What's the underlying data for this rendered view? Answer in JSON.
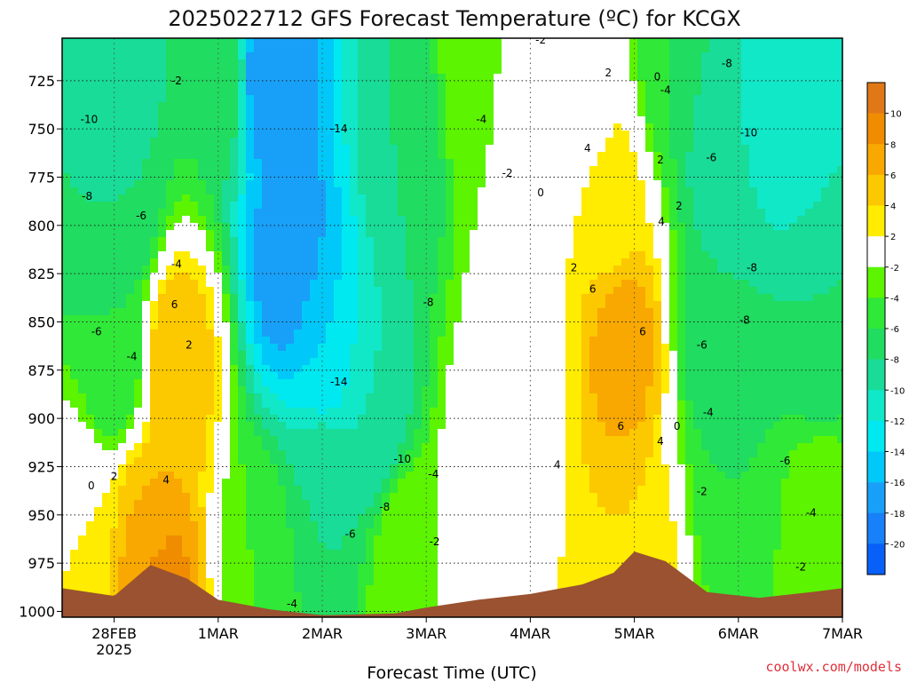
{
  "chart_data": {
    "type": "heatmap",
    "title": "2025022712 GFS Forecast Temperature (ºC) for KCGX",
    "xlabel": "Forecast Time (UTC)",
    "ylabel": "",
    "credit": "coolwx.com/models",
    "x_ticks": [
      {
        "label": "28FEB",
        "sub": "2025",
        "x": 0.5
      },
      {
        "label": "1MAR",
        "sub": "",
        "x": 1.5
      },
      {
        "label": "2MAR",
        "sub": "",
        "x": 2.5
      },
      {
        "label": "3MAR",
        "sub": "",
        "x": 3.5
      },
      {
        "label": "4MAR",
        "sub": "",
        "x": 4.5
      },
      {
        "label": "5MAR",
        "sub": "",
        "x": 5.5
      },
      {
        "label": "6MAR",
        "sub": "",
        "x": 6.5
      },
      {
        "label": "7MAR",
        "sub": "",
        "x": 7.5
      }
    ],
    "xlim": [
      0,
      7.5
    ],
    "y_ticks": [
      725,
      750,
      775,
      800,
      825,
      850,
      875,
      900,
      925,
      950,
      975,
      1000
    ],
    "ylim": [
      703,
      1003
    ],
    "y_inverted": true,
    "colorbar": {
      "labels": [
        10,
        8,
        6,
        4,
        2,
        -2,
        -4,
        -6,
        -8,
        -10,
        -12,
        -14,
        -16,
        -18,
        -20
      ],
      "bins": [
        {
          "lo": 10,
          "hi": 12,
          "color": "#e07818"
        },
        {
          "lo": 8,
          "hi": 10,
          "color": "#f08c00"
        },
        {
          "lo": 6,
          "hi": 8,
          "color": "#f8a800"
        },
        {
          "lo": 4,
          "hi": 6,
          "color": "#fcc800"
        },
        {
          "lo": 2,
          "hi": 4,
          "color": "#ffec00"
        },
        {
          "lo": -2,
          "hi": 2,
          "color": "#ffffff"
        },
        {
          "lo": -4,
          "hi": -2,
          "color": "#5cf400"
        },
        {
          "lo": -6,
          "hi": -4,
          "color": "#30e838"
        },
        {
          "lo": -8,
          "hi": -6,
          "color": "#20dc60"
        },
        {
          "lo": -10,
          "hi": -8,
          "color": "#18dc98"
        },
        {
          "lo": -12,
          "hi": -10,
          "color": "#10e8c8"
        },
        {
          "lo": -14,
          "hi": -12,
          "color": "#00e8f0"
        },
        {
          "lo": -16,
          "hi": -14,
          "color": "#00c8f8"
        },
        {
          "lo": -18,
          "hi": -16,
          "color": "#18a0f8"
        },
        {
          "lo": -20,
          "hi": -18,
          "color": "#1880f8"
        },
        {
          "lo": -22,
          "hi": -20,
          "color": "#0860f8"
        }
      ]
    },
    "terrain_color": "#9a5230",
    "surface_pressure": [
      [
        0,
        988
      ],
      [
        0.5,
        992
      ],
      [
        0.85,
        976
      ],
      [
        1.2,
        983
      ],
      [
        1.5,
        994
      ],
      [
        2,
        999
      ],
      [
        2.5,
        1002
      ],
      [
        3.2,
        1001
      ],
      [
        3.5,
        998
      ],
      [
        4,
        994
      ],
      [
        4.5,
        991
      ],
      [
        5,
        986
      ],
      [
        5.3,
        980
      ],
      [
        5.5,
        969
      ],
      [
        5.8,
        974
      ],
      [
        6.2,
        990
      ],
      [
        6.7,
        993
      ],
      [
        7.2,
        990
      ],
      [
        7.5,
        988
      ]
    ],
    "series": [
      {
        "name": "",
        "x": 0.5,
        "y": 725,
        "value": -10
      },
      {
        "name": "",
        "x": 0.1,
        "y": 770,
        "value": -8
      },
      {
        "name": "",
        "x": 0.6,
        "y": 790,
        "value": -8
      },
      {
        "name": "",
        "x": 0.5,
        "y": 870,
        "value": -6
      },
      {
        "name": "",
        "x": 0.2,
        "y": 960,
        "value": 2
      },
      {
        "name": "",
        "x": 0.8,
        "y": 960,
        "value": 6
      },
      {
        "name": "",
        "x": 1.1,
        "y": 870,
        "value": 6
      },
      {
        "name": "",
        "x": 0.9,
        "y": 990,
        "value": 10
      },
      {
        "name": "",
        "x": 1.5,
        "y": 720,
        "value": -6
      },
      {
        "name": "",
        "x": 2.0,
        "y": 720,
        "value": -18
      },
      {
        "name": "",
        "x": 2.2,
        "y": 820,
        "value": -18
      },
      {
        "name": "",
        "x": 2.5,
        "y": 860,
        "value": -14
      },
      {
        "name": "",
        "x": 2.5,
        "y": 940,
        "value": -8
      },
      {
        "name": "",
        "x": 1.9,
        "y": 975,
        "value": -4
      },
      {
        "name": "",
        "x": 3.3,
        "y": 760,
        "value": -8
      },
      {
        "name": "",
        "x": 3.0,
        "y": 900,
        "value": -10
      },
      {
        "name": "",
        "x": 3.3,
        "y": 970,
        "value": -2
      },
      {
        "name": "",
        "x": 4.0,
        "y": 730,
        "value": -2
      },
      {
        "name": "",
        "x": 4.4,
        "y": 850,
        "value": 0
      },
      {
        "name": "",
        "x": 4.1,
        "y": 930,
        "value": 1
      },
      {
        "name": "",
        "x": 5.0,
        "y": 730,
        "value": 0
      },
      {
        "name": "",
        "x": 5.3,
        "y": 790,
        "value": 3
      },
      {
        "name": "",
        "x": 5.4,
        "y": 860,
        "value": 7
      },
      {
        "name": "",
        "x": 5.5,
        "y": 980,
        "value": 4
      },
      {
        "name": "",
        "x": 5.9,
        "y": 720,
        "value": -6
      },
      {
        "name": "",
        "x": 6.3,
        "y": 750,
        "value": -10
      },
      {
        "name": "",
        "x": 6.3,
        "y": 850,
        "value": -8
      },
      {
        "name": "",
        "x": 6.5,
        "y": 930,
        "value": -6
      },
      {
        "name": "",
        "x": 7.0,
        "y": 740,
        "value": -12
      },
      {
        "name": "",
        "x": 7.3,
        "y": 850,
        "value": -8
      },
      {
        "name": "",
        "x": 7.3,
        "y": 960,
        "value": -2
      }
    ],
    "contour_labels": [
      {
        "text": "-10",
        "x": 0.26,
        "y": 745
      },
      {
        "text": "-8",
        "x": 0.24,
        "y": 785
      },
      {
        "text": "-6",
        "x": 0.76,
        "y": 795
      },
      {
        "text": "-6",
        "x": 0.33,
        "y": 855
      },
      {
        "text": "-4",
        "x": 0.67,
        "y": 868
      },
      {
        "text": "0",
        "x": 0.28,
        "y": 935
      },
      {
        "text": "2",
        "x": 0.5,
        "y": 930
      },
      {
        "text": "-2",
        "x": 1.1,
        "y": 725
      },
      {
        "text": "-4",
        "x": 1.1,
        "y": 820
      },
      {
        "text": "6",
        "x": 1.08,
        "y": 841
      },
      {
        "text": "2",
        "x": 1.22,
        "y": 862
      },
      {
        "text": "4",
        "x": 1.0,
        "y": 932
      },
      {
        "text": "-14",
        "x": 2.66,
        "y": 750
      },
      {
        "text": "-14",
        "x": 2.66,
        "y": 881
      },
      {
        "text": "-10",
        "x": 3.27,
        "y": 921
      },
      {
        "text": "-8",
        "x": 3.1,
        "y": 946
      },
      {
        "text": "-6",
        "x": 2.77,
        "y": 960
      },
      {
        "text": "-4",
        "x": 2.21,
        "y": 996
      },
      {
        "text": "-8",
        "x": 3.52,
        "y": 840
      },
      {
        "text": "-4",
        "x": 3.57,
        "y": 929
      },
      {
        "text": "-2",
        "x": 3.58,
        "y": 964
      },
      {
        "text": "-4",
        "x": 4.03,
        "y": 745
      },
      {
        "text": "-2",
        "x": 4.28,
        "y": 773
      },
      {
        "text": "0",
        "x": 4.6,
        "y": 783
      },
      {
        "text": "-2",
        "x": 4.6,
        "y": 704
      },
      {
        "text": "2",
        "x": 5.25,
        "y": 721
      },
      {
        "text": "0",
        "x": 5.72,
        "y": 723
      },
      {
        "text": "-4",
        "x": 5.8,
        "y": 730
      },
      {
        "text": "4",
        "x": 5.05,
        "y": 760
      },
      {
        "text": "2",
        "x": 5.75,
        "y": 766
      },
      {
        "text": "2",
        "x": 5.93,
        "y": 790
      },
      {
        "text": "4",
        "x": 5.76,
        "y": 798
      },
      {
        "text": "2",
        "x": 4.92,
        "y": 822
      },
      {
        "text": "6",
        "x": 5.1,
        "y": 833
      },
      {
        "text": "6",
        "x": 5.58,
        "y": 855
      },
      {
        "text": "6",
        "x": 5.37,
        "y": 904
      },
      {
        "text": "4",
        "x": 5.75,
        "y": 912
      },
      {
        "text": "0",
        "x": 5.91,
        "y": 904
      },
      {
        "text": "4",
        "x": 4.76,
        "y": 924
      },
      {
        "text": "-8",
        "x": 6.39,
        "y": 716
      },
      {
        "text": "-10",
        "x": 6.6,
        "y": 752
      },
      {
        "text": "-6",
        "x": 6.24,
        "y": 765
      },
      {
        "text": "-8",
        "x": 6.63,
        "y": 822
      },
      {
        "text": "-8",
        "x": 6.56,
        "y": 849
      },
      {
        "text": "-6",
        "x": 6.15,
        "y": 862
      },
      {
        "text": "-4",
        "x": 6.21,
        "y": 897
      },
      {
        "text": "-6",
        "x": 6.95,
        "y": 922
      },
      {
        "text": "-2",
        "x": 6.15,
        "y": 938
      },
      {
        "text": "-4",
        "x": 7.2,
        "y": 949
      },
      {
        "text": "-2",
        "x": 7.1,
        "y": 977
      }
    ]
  }
}
